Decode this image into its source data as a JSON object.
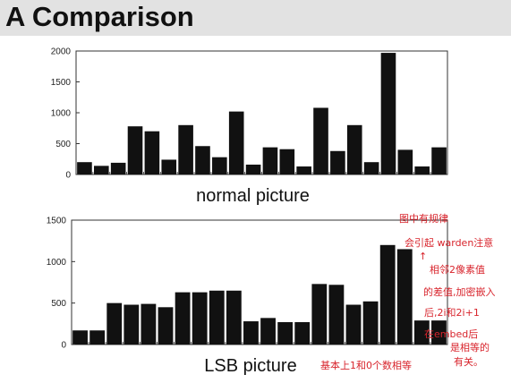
{
  "slide": {
    "title": "A Comparison",
    "accent_color": "#d8242c",
    "bar_color": "#111111"
  },
  "chart_data": [
    {
      "type": "bar",
      "title": "normal picture",
      "xlabel": "",
      "ylabel": "",
      "ylim": [
        0,
        2000
      ],
      "yticks": [
        0,
        500,
        1000,
        1500,
        2000
      ],
      "values": [
        200,
        140,
        190,
        780,
        700,
        240,
        800,
        460,
        280,
        1020,
        160,
        440,
        410,
        130,
        1080,
        380,
        800,
        200,
        1970,
        400,
        130,
        440
      ],
      "grid": false
    },
    {
      "type": "bar",
      "title": "LSB picture",
      "xlabel": "",
      "ylabel": "",
      "ylim": [
        0,
        1500
      ],
      "yticks": [
        0,
        500,
        1000,
        1500
      ],
      "values": [
        170,
        170,
        500,
        480,
        490,
        450,
        630,
        630,
        650,
        650,
        280,
        320,
        270,
        270,
        730,
        720,
        480,
        520,
        1200,
        1150,
        290,
        290
      ],
      "grid": false
    }
  ],
  "annotations": [
    "图中有规律",
    "会引起 warden注意",
    "↑",
    "相邻2像素值",
    "的差值,加密嵌入",
    "后,2i和2i+1",
    "在embed后",
    "是相等的",
    "有关。",
    "基本上1和0个数相等"
  ]
}
